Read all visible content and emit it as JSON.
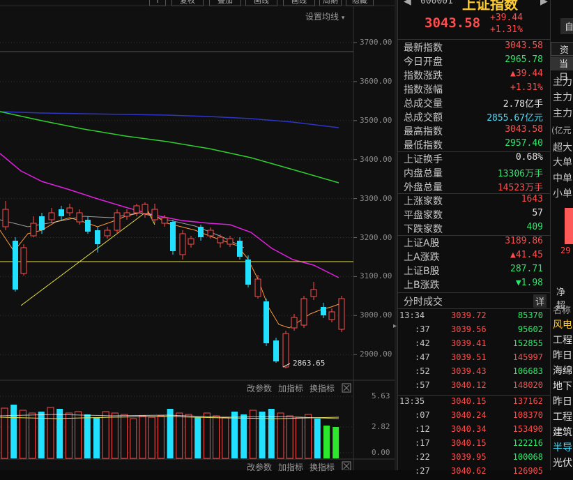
{
  "toolbar": {
    "items": [
      "↑",
      "复权",
      "叠加",
      "画线",
      "画线",
      "周期",
      "隐藏"
    ]
  },
  "chart": {
    "ma_setting": "设置均线",
    "price_axis": [
      "3700.00",
      "3600.00",
      "3500.00",
      "3400.00",
      "3300.00",
      "3200.00",
      "3100.00",
      "3000.00",
      "2900.00"
    ],
    "low_marker": "2863.65",
    "volume_panel": {
      "links": [
        "改参数",
        "加指标",
        "换指标"
      ],
      "axis": [
        "5.63",
        "2.82",
        "0.00"
      ]
    },
    "bottom_links": [
      "改参数",
      "加指标",
      "换指标"
    ]
  },
  "header": {
    "code": "000001",
    "name": "上证指数",
    "price": "3043.58",
    "change": "+39.44",
    "change_pct": "+1.31%"
  },
  "stats": [
    {
      "k": "最新指数",
      "v": "3043.58",
      "c": "red"
    },
    {
      "k": "今日开盘",
      "v": "2965.78",
      "c": "green"
    },
    {
      "k": "指数涨跌",
      "v": "▲39.44",
      "c": "red"
    },
    {
      "k": "指数涨幅",
      "v": "+1.31%",
      "c": "red"
    },
    {
      "k": "总成交量",
      "v": "2.78亿手",
      "c": "white"
    },
    {
      "k": "总成交额",
      "v": "2855.67亿元",
      "c": "cyan"
    },
    {
      "k": "最高指数",
      "v": "3043.58",
      "c": "red"
    },
    {
      "k": "最低指数",
      "v": "2957.40",
      "c": "green"
    },
    {
      "k": "上证换手",
      "v": "0.68%",
      "c": "white"
    },
    {
      "k": "内盘总量",
      "v": "13306万手",
      "c": "green"
    },
    {
      "k": "外盘总量",
      "v": "14523万手",
      "c": "red"
    },
    {
      "k": "上涨家数",
      "v": "1643",
      "c": "red"
    },
    {
      "k": "平盘家数",
      "v": "57",
      "c": "white"
    },
    {
      "k": "下跌家数",
      "v": "409",
      "c": "green"
    },
    {
      "k": "上证A股",
      "v": "3189.86",
      "c": "red"
    },
    {
      "k": "上A涨跌",
      "v": "▲41.45",
      "c": "red"
    },
    {
      "k": "上证B股",
      "v": "287.71",
      "c": "green"
    },
    {
      "k": "上B涨跌",
      "v": "▼1.98",
      "c": "green"
    }
  ],
  "ticks_header": {
    "title": "分时成交",
    "detail": "详"
  },
  "ticks": [
    {
      "t": "13:34",
      "p": "3039.72",
      "v": "85370",
      "pc": "red",
      "vc": "green"
    },
    {
      "t": ":37",
      "p": "3039.56",
      "v": "95602",
      "pc": "red",
      "vc": "green"
    },
    {
      "t": ":42",
      "p": "3039.41",
      "v": "152855",
      "pc": "red",
      "vc": "green"
    },
    {
      "t": ":47",
      "p": "3039.51",
      "v": "145997",
      "pc": "red",
      "vc": "red"
    },
    {
      "t": ":52",
      "p": "3039.43",
      "v": "106683",
      "pc": "red",
      "vc": "green"
    },
    {
      "t": ":57",
      "p": "3040.12",
      "v": "148020",
      "pc": "red",
      "vc": "red"
    },
    {
      "t": "13:35",
      "p": "3040.15",
      "v": "137162",
      "pc": "red",
      "vc": "red"
    },
    {
      "t": ":07",
      "p": "3040.24",
      "v": "108370",
      "pc": "red",
      "vc": "red"
    },
    {
      "t": ":12",
      "p": "3040.34",
      "v": "153490",
      "pc": "red",
      "vc": "red"
    },
    {
      "t": ":17",
      "p": "3040.15",
      "v": "122216",
      "pc": "red",
      "vc": "green"
    },
    {
      "t": ":22",
      "p": "3039.95",
      "v": "100068",
      "pc": "red",
      "vc": "green"
    },
    {
      "t": ":27",
      "p": "3040.62",
      "v": "126905",
      "pc": "red",
      "vc": "red"
    }
  ],
  "side": {
    "top_btn": "自",
    "tabs": [
      "资金",
      "当日"
    ],
    "labels": [
      "主力",
      "主力",
      "主力",
      "(亿元",
      "超大",
      "大单",
      "中单",
      "小单"
    ],
    "bar_value": "29",
    "net": "净超",
    "name_header": "名称",
    "names": [
      "风电",
      "工程",
      "昨日",
      "海绵",
      "地下",
      "昨日",
      "工程",
      "建筑",
      "半导",
      "光伏"
    ]
  }
}
